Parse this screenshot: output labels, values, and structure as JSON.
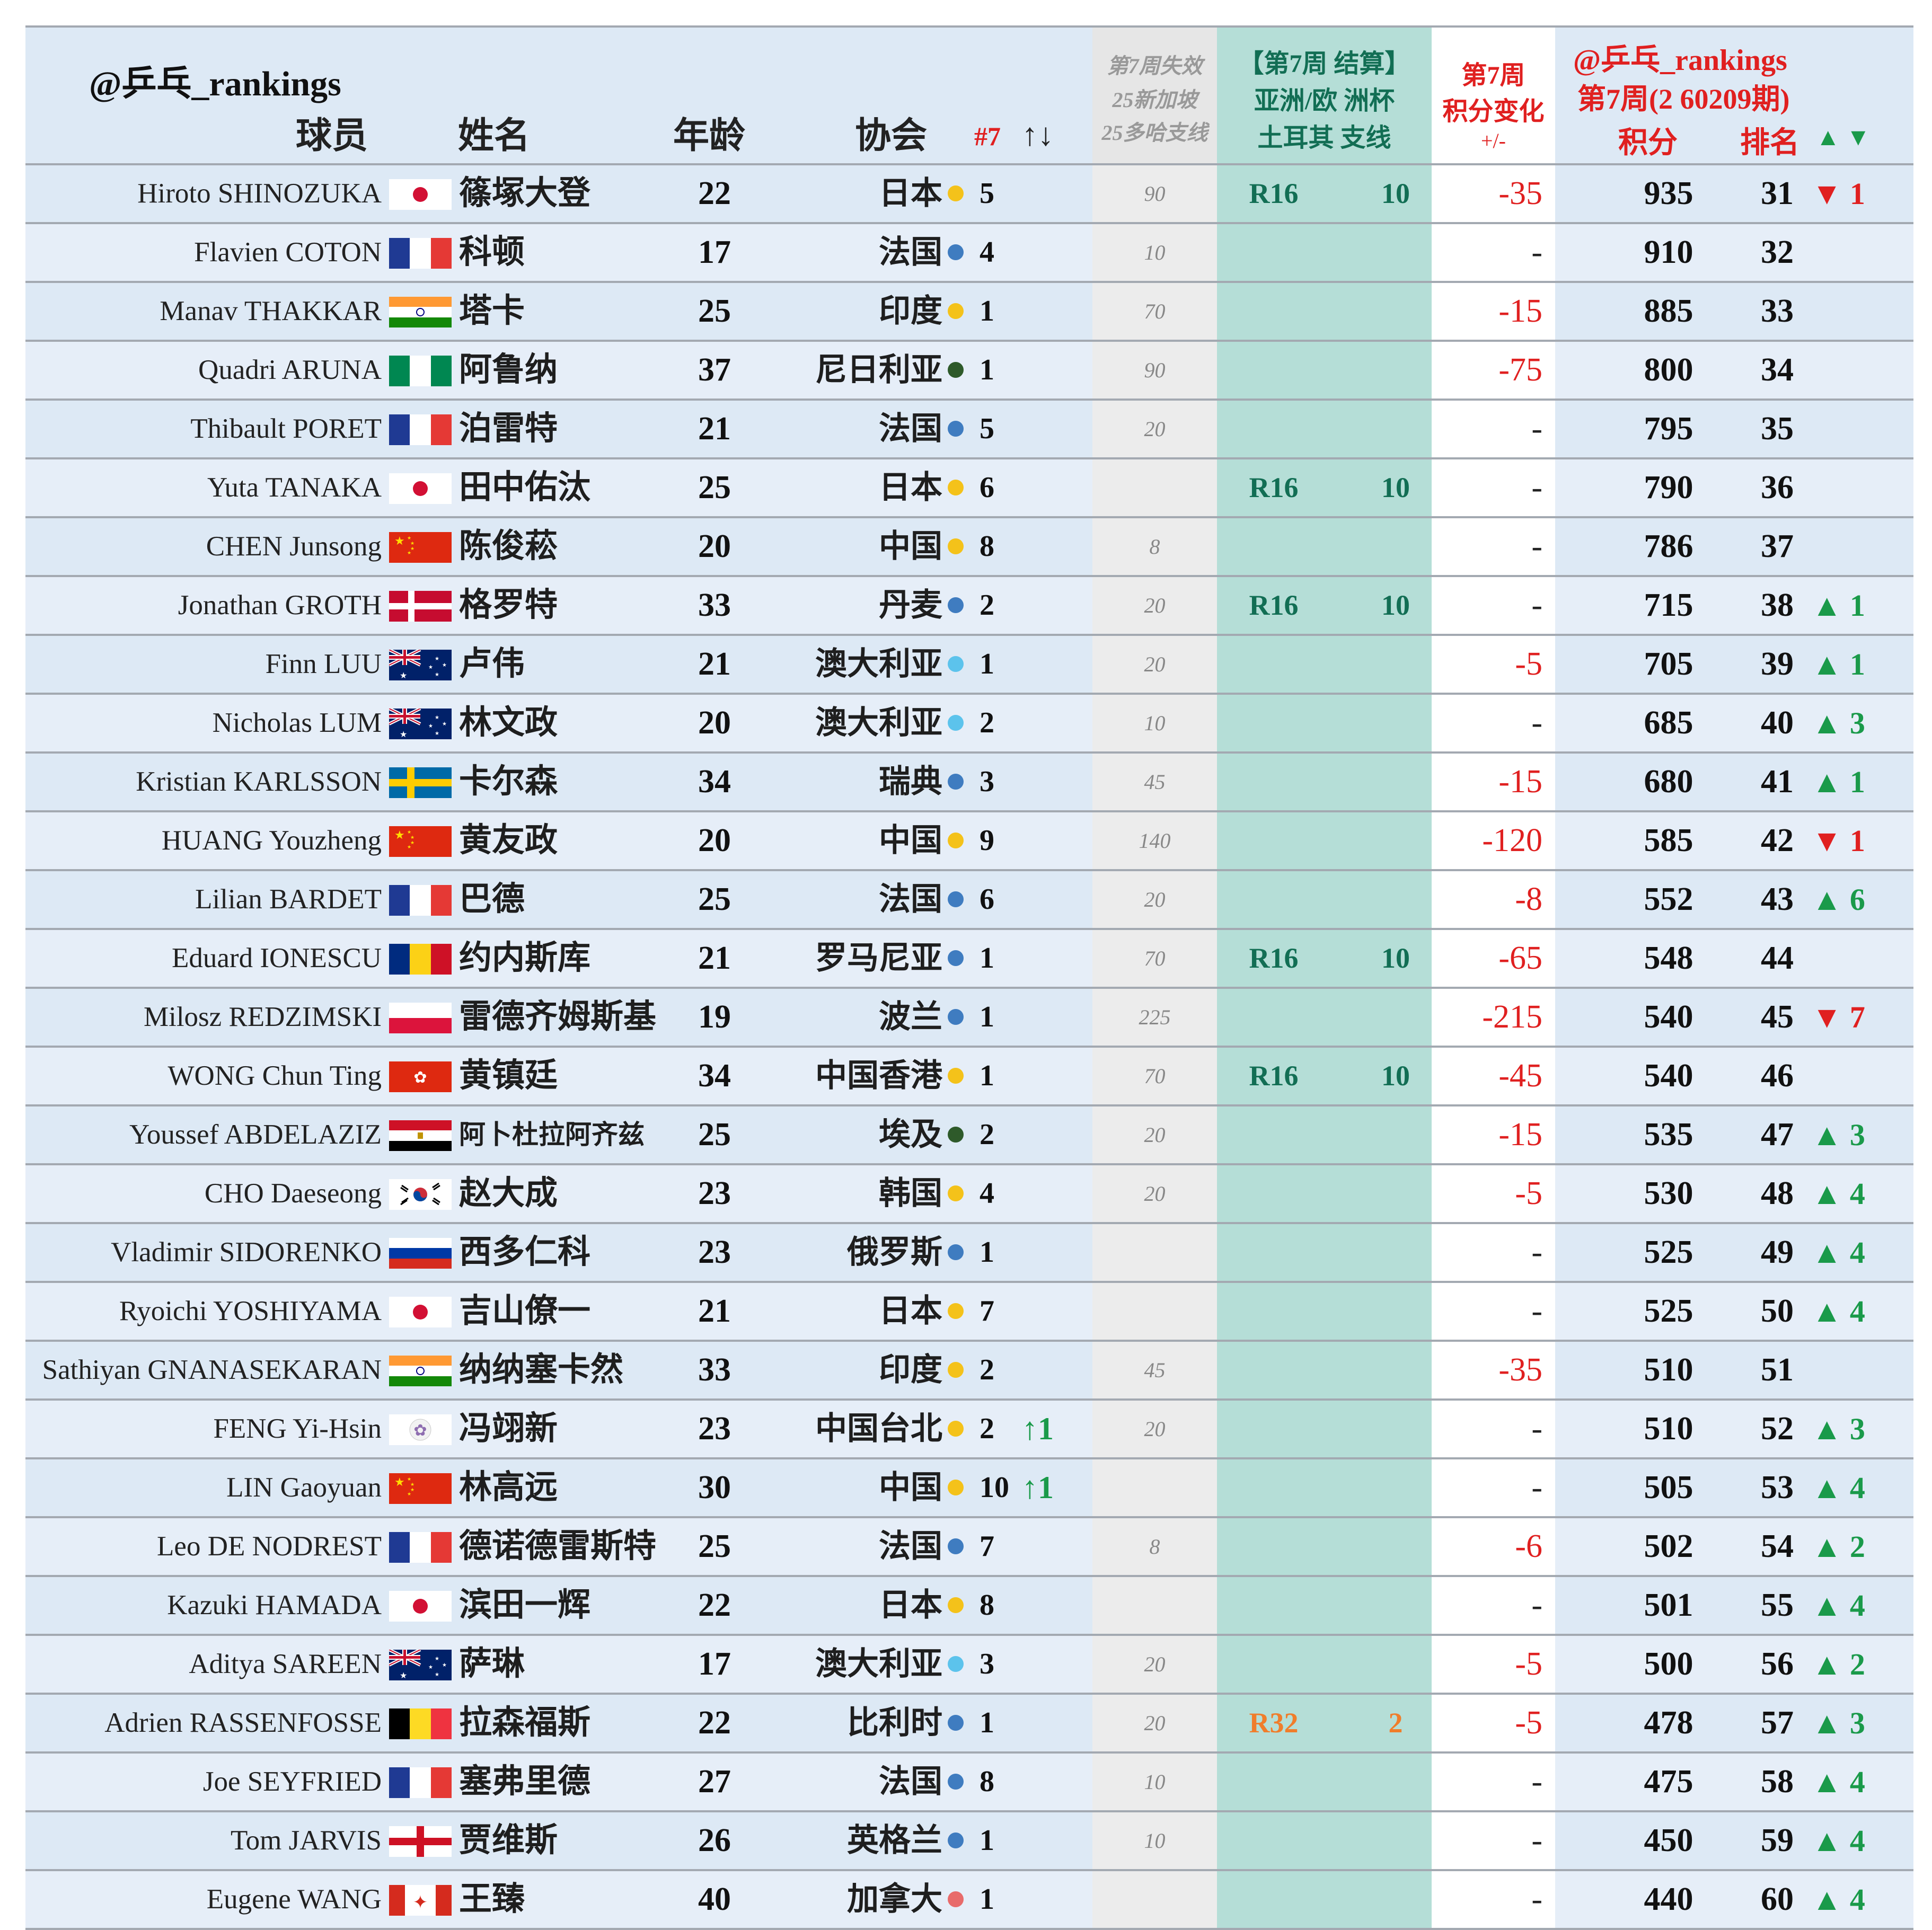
{
  "header": {
    "brand": "@乒乓_rankings",
    "col_player": "球员",
    "col_name": "姓名",
    "col_age": "年龄",
    "col_assoc": "协会",
    "col_rank7": "#7",
    "col_rank7_arrows": "↑↓",
    "loss_line1": "第7周失效",
    "loss_line2": "25新加坡",
    "loss_line3": "25多哈支线",
    "cup_line1": "【第7周 结算】",
    "cup_line2": "亚洲/欧 洲杯",
    "cup_line3": "土耳其 支线",
    "chg_line1": "第7周",
    "chg_line2": "积分变化",
    "chg_line3": "+/-",
    "rank_brand": "@乒乓_rankings",
    "rank_period": "第7周(2 60209期)",
    "rank_points": "积分",
    "rank_rank": "排名",
    "rank_arrows": "▲ ▼"
  },
  "colors": {
    "header_bg": "#dde9f5",
    "loss_bg": "#ececec",
    "cup_bg": "#b5ded7",
    "cup_text": "#126e54",
    "cup_text_r32": "#f07d2b",
    "up": "#1a9a4a",
    "down": "#e02020",
    "asia_dot": "#f4c21a",
    "europe_dot": "#3f7cc0",
    "africa_dot": "#2e5a2a",
    "oceania_dot": "#5cc3ec",
    "america_dot": "#e86b6b"
  },
  "players": [
    {
      "en": "Hiroto SHINOZUKA",
      "flag": "japan",
      "cn": "篠塚大登",
      "age": "22",
      "assoc": "日本",
      "region": "asia",
      "count": "5",
      "arrow": "",
      "loss": "90",
      "stage": "R16",
      "spts": "10",
      "chg": "-35",
      "pts": "935",
      "rank": "31",
      "mv": "▼ 1",
      "dir": "down"
    },
    {
      "en": "Flavien COTON",
      "flag": "france",
      "cn": "科顿",
      "age": "17",
      "assoc": "法国",
      "region": "europe",
      "count": "4",
      "arrow": "",
      "loss": "10",
      "stage": "",
      "spts": "",
      "chg": "-",
      "pts": "910",
      "rank": "32",
      "mv": "",
      "dir": ""
    },
    {
      "en": "Manav THAKKAR",
      "flag": "india",
      "cn": "塔卡",
      "age": "25",
      "assoc": "印度",
      "region": "asia",
      "count": "1",
      "arrow": "",
      "loss": "70",
      "stage": "",
      "spts": "",
      "chg": "-15",
      "pts": "885",
      "rank": "33",
      "mv": "",
      "dir": ""
    },
    {
      "en": "Quadri ARUNA",
      "flag": "nigeria",
      "cn": "阿鲁纳",
      "age": "37",
      "assoc": "尼日利亚",
      "region": "africa",
      "count": "1",
      "arrow": "",
      "loss": "90",
      "stage": "",
      "spts": "",
      "chg": "-75",
      "pts": "800",
      "rank": "34",
      "mv": "",
      "dir": ""
    },
    {
      "en": "Thibault PORET",
      "flag": "france",
      "cn": "泊雷特",
      "age": "21",
      "assoc": "法国",
      "region": "europe",
      "count": "5",
      "arrow": "",
      "loss": "20",
      "stage": "",
      "spts": "",
      "chg": "-",
      "pts": "795",
      "rank": "35",
      "mv": "",
      "dir": ""
    },
    {
      "en": "Yuta TANAKA",
      "flag": "japan",
      "cn": "田中佑汰",
      "age": "25",
      "assoc": "日本",
      "region": "asia",
      "count": "6",
      "arrow": "",
      "loss": "",
      "stage": "R16",
      "spts": "10",
      "chg": "-",
      "pts": "790",
      "rank": "36",
      "mv": "",
      "dir": ""
    },
    {
      "en": "CHEN Junsong",
      "flag": "china",
      "cn": "陈俊菘",
      "age": "20",
      "assoc": "中国",
      "region": "asia",
      "count": "8",
      "arrow": "",
      "loss": "8",
      "stage": "",
      "spts": "",
      "chg": "-",
      "pts": "786",
      "rank": "37",
      "mv": "",
      "dir": ""
    },
    {
      "en": "Jonathan GROTH",
      "flag": "denmark",
      "cn": "格罗特",
      "age": "33",
      "assoc": "丹麦",
      "region": "europe",
      "count": "2",
      "arrow": "",
      "loss": "20",
      "stage": "R16",
      "spts": "10",
      "chg": "-",
      "pts": "715",
      "rank": "38",
      "mv": "▲ 1",
      "dir": "up"
    },
    {
      "en": "Finn LUU",
      "flag": "australia",
      "cn": "卢伟",
      "age": "21",
      "assoc": "澳大利亚",
      "region": "oceania",
      "count": "1",
      "arrow": "",
      "loss": "20",
      "stage": "",
      "spts": "",
      "chg": "-5",
      "pts": "705",
      "rank": "39",
      "mv": "▲ 1",
      "dir": "up"
    },
    {
      "en": "Nicholas LUM",
      "flag": "australia",
      "cn": "林文政",
      "age": "20",
      "assoc": "澳大利亚",
      "region": "oceania",
      "count": "2",
      "arrow": "",
      "loss": "10",
      "stage": "",
      "spts": "",
      "chg": "-",
      "pts": "685",
      "rank": "40",
      "mv": "▲ 3",
      "dir": "up"
    },
    {
      "en": "Kristian KARLSSON",
      "flag": "sweden",
      "cn": "卡尔森",
      "age": "34",
      "assoc": "瑞典",
      "region": "europe",
      "count": "3",
      "arrow": "",
      "loss": "45",
      "stage": "",
      "spts": "",
      "chg": "-15",
      "pts": "680",
      "rank": "41",
      "mv": "▲ 1",
      "dir": "up"
    },
    {
      "en": "HUANG Youzheng",
      "flag": "china",
      "cn": "黄友政",
      "age": "20",
      "assoc": "中国",
      "region": "asia",
      "count": "9",
      "arrow": "",
      "loss": "140",
      "stage": "",
      "spts": "",
      "chg": "-120",
      "pts": "585",
      "rank": "42",
      "mv": "▼ 1",
      "dir": "down"
    },
    {
      "en": "Lilian BARDET",
      "flag": "france",
      "cn": "巴德",
      "age": "25",
      "assoc": "法国",
      "region": "europe",
      "count": "6",
      "arrow": "",
      "loss": "20",
      "stage": "",
      "spts": "",
      "chg": "-8",
      "pts": "552",
      "rank": "43",
      "mv": "▲ 6",
      "dir": "up"
    },
    {
      "en": "Eduard IONESCU",
      "flag": "romania",
      "cn": "约内斯库",
      "age": "21",
      "assoc": "罗马尼亚",
      "region": "europe",
      "count": "1",
      "arrow": "",
      "loss": "70",
      "stage": "R16",
      "spts": "10",
      "chg": "-65",
      "pts": "548",
      "rank": "44",
      "mv": "",
      "dir": ""
    },
    {
      "en": "Milosz REDZIMSKI",
      "flag": "poland",
      "cn": "雷德齐姆斯基",
      "age": "19",
      "assoc": "波兰",
      "region": "europe",
      "count": "1",
      "arrow": "",
      "loss": "225",
      "stage": "",
      "spts": "",
      "chg": "-215",
      "pts": "540",
      "rank": "45",
      "mv": "▼ 7",
      "dir": "down"
    },
    {
      "en": "WONG Chun Ting",
      "flag": "hongkong",
      "cn": "黄镇廷",
      "age": "34",
      "assoc": "中国香港",
      "region": "asia",
      "count": "1",
      "arrow": "",
      "loss": "70",
      "stage": "R16",
      "spts": "10",
      "chg": "-45",
      "pts": "540",
      "rank": "46",
      "mv": "",
      "dir": ""
    },
    {
      "en": "Youssef ABDELAZIZ",
      "flag": "egypt",
      "cn": "阿卜杜拉阿齐兹",
      "age": "25",
      "assoc": "埃及",
      "region": "africa",
      "count": "2",
      "arrow": "",
      "loss": "20",
      "stage": "",
      "spts": "",
      "chg": "-15",
      "pts": "535",
      "rank": "47",
      "mv": "▲ 3",
      "dir": "up"
    },
    {
      "en": "CHO Daeseong",
      "flag": "korea",
      "cn": "赵大成",
      "age": "23",
      "assoc": "韩国",
      "region": "asia",
      "count": "4",
      "arrow": "",
      "loss": "20",
      "stage": "",
      "spts": "",
      "chg": "-5",
      "pts": "530",
      "rank": "48",
      "mv": "▲ 4",
      "dir": "up"
    },
    {
      "en": "Vladimir SIDORENKO",
      "flag": "russia",
      "cn": "西多仁科",
      "age": "23",
      "assoc": "俄罗斯",
      "region": "europe",
      "count": "1",
      "arrow": "",
      "loss": "",
      "stage": "",
      "spts": "",
      "chg": "-",
      "pts": "525",
      "rank": "49",
      "mv": "▲ 4",
      "dir": "up"
    },
    {
      "en": "Ryoichi YOSHIYAMA",
      "flag": "japan",
      "cn": "吉山僚一",
      "age": "21",
      "assoc": "日本",
      "region": "asia",
      "count": "7",
      "arrow": "",
      "loss": "",
      "stage": "",
      "spts": "",
      "chg": "-",
      "pts": "525",
      "rank": "50",
      "mv": "▲ 4",
      "dir": "up"
    },
    {
      "en": "Sathiyan GNANASEKARAN",
      "flag": "india",
      "cn": "纳纳塞卡然",
      "age": "33",
      "assoc": "印度",
      "region": "asia",
      "count": "2",
      "arrow": "",
      "loss": "45",
      "stage": "",
      "spts": "",
      "chg": "-35",
      "pts": "510",
      "rank": "51",
      "mv": "",
      "dir": ""
    },
    {
      "en": "FENG Yi-Hsin",
      "flag": "taipei",
      "cn": "冯翊新",
      "age": "23",
      "assoc": "中国台北",
      "region": "asia",
      "count": "2",
      "arrow": "↑1",
      "loss": "20",
      "stage": "",
      "spts": "",
      "chg": "-",
      "pts": "510",
      "rank": "52",
      "mv": "▲ 3",
      "dir": "up"
    },
    {
      "en": "LIN Gaoyuan",
      "flag": "china",
      "cn": "林高远",
      "age": "30",
      "assoc": "中国",
      "region": "asia",
      "count": "10",
      "arrow": "↑1",
      "loss": "",
      "stage": "",
      "spts": "",
      "chg": "-",
      "pts": "505",
      "rank": "53",
      "mv": "▲ 4",
      "dir": "up"
    },
    {
      "en": "Leo DE NODREST",
      "flag": "france",
      "cn": "德诺德雷斯特",
      "age": "25",
      "assoc": "法国",
      "region": "europe",
      "count": "7",
      "arrow": "",
      "loss": "8",
      "stage": "",
      "spts": "",
      "chg": "-6",
      "pts": "502",
      "rank": "54",
      "mv": "▲ 2",
      "dir": "up"
    },
    {
      "en": "Kazuki HAMADA",
      "flag": "japan",
      "cn": "滨田一辉",
      "age": "22",
      "assoc": "日本",
      "region": "asia",
      "count": "8",
      "arrow": "",
      "loss": "",
      "stage": "",
      "spts": "",
      "chg": "-",
      "pts": "501",
      "rank": "55",
      "mv": "▲ 4",
      "dir": "up"
    },
    {
      "en": "Aditya SAREEN",
      "flag": "australia",
      "cn": "萨琳",
      "age": "17",
      "assoc": "澳大利亚",
      "region": "oceania",
      "count": "3",
      "arrow": "",
      "loss": "20",
      "stage": "",
      "spts": "",
      "chg": "-5",
      "pts": "500",
      "rank": "56",
      "mv": "▲ 2",
      "dir": "up"
    },
    {
      "en": "Adrien RASSENFOSSE",
      "flag": "belgium",
      "cn": "拉森福斯",
      "age": "22",
      "assoc": "比利时",
      "region": "europe",
      "count": "1",
      "arrow": "",
      "loss": "20",
      "stage": "R32",
      "spts": "2",
      "chg": "-5",
      "pts": "478",
      "rank": "57",
      "mv": "▲ 3",
      "dir": "up"
    },
    {
      "en": "Joe SEYFRIED",
      "flag": "france",
      "cn": "塞弗里德",
      "age": "27",
      "assoc": "法国",
      "region": "europe",
      "count": "8",
      "arrow": "",
      "loss": "10",
      "stage": "",
      "spts": "",
      "chg": "-",
      "pts": "475",
      "rank": "58",
      "mv": "▲ 4",
      "dir": "up"
    },
    {
      "en": "Tom JARVIS",
      "flag": "england",
      "cn": "贾维斯",
      "age": "26",
      "assoc": "英格兰",
      "region": "europe",
      "count": "1",
      "arrow": "",
      "loss": "10",
      "stage": "",
      "spts": "",
      "chg": "-",
      "pts": "450",
      "rank": "59",
      "mv": "▲ 4",
      "dir": "up"
    },
    {
      "en": "Eugene WANG",
      "flag": "canada",
      "cn": "王臻",
      "age": "40",
      "assoc": "加拿大",
      "region": "america",
      "count": "1",
      "arrow": "",
      "loss": "",
      "stage": "",
      "spts": "",
      "chg": "-",
      "pts": "440",
      "rank": "60",
      "mv": "▲ 4",
      "dir": "up"
    }
  ]
}
